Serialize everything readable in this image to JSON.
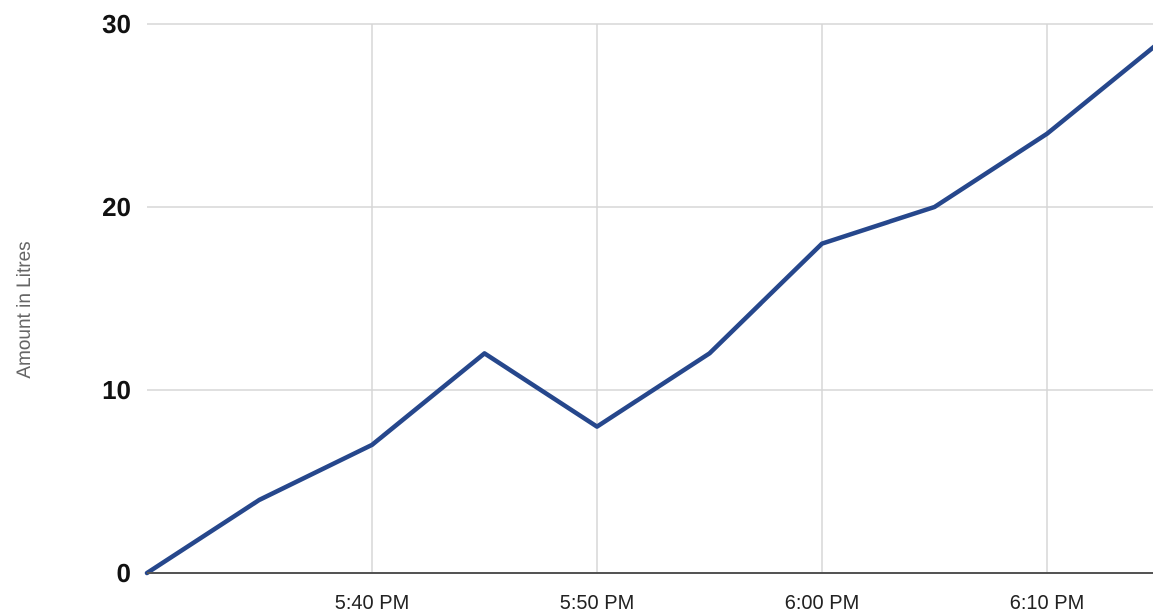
{
  "chart_data": {
    "type": "line",
    "title": "",
    "xlabel": "",
    "ylabel": "Amount in Litres",
    "x_unit": "time of day",
    "x": [
      "5:30 PM",
      "5:35 PM",
      "5:40 PM",
      "5:45 PM",
      "5:50 PM",
      "5:55 PM",
      "6:00 PM",
      "6:05 PM",
      "6:10 PM",
      "6:15 PM"
    ],
    "x_ticks": [
      "5:40 PM",
      "5:50 PM",
      "6:00 PM",
      "6:10 PM"
    ],
    "series": [
      {
        "values": [
          0,
          4,
          7,
          12,
          8,
          12,
          18,
          20,
          24,
          29
        ],
        "color": "#26478c"
      }
    ],
    "ylim": [
      0,
      30
    ],
    "y_ticks": [
      0,
      10,
      20,
      30
    ],
    "grid": true,
    "legend": "none"
  }
}
